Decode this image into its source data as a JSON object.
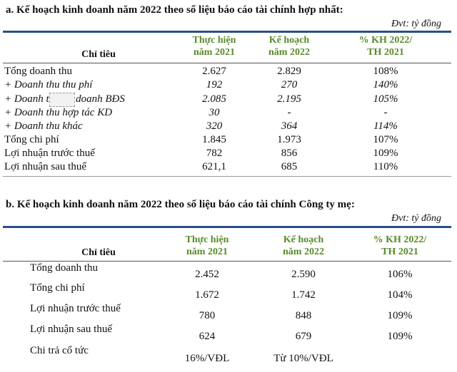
{
  "section_a": {
    "heading": "a.  Kế hoạch kinh doanh năm 2022 theo số liệu báo cáo tài chính hợp nhất:",
    "unit": "Đvt: tỷ đồng",
    "headers": {
      "label": "Chỉ tiêu",
      "c1": [
        "Thực hiện",
        "năm 2021"
      ],
      "c2": [
        "Kế hoạch",
        "năm 2022"
      ],
      "c3": [
        "% KH 2022/",
        "TH 2021"
      ]
    },
    "rows": [
      {
        "label": "Tổng doanh thu",
        "v1": "2.627",
        "v2": "2.829",
        "v3": "108%",
        "italic": false
      },
      {
        "label": "+ Doanh thu thu phí",
        "v1": "192",
        "v2": "270",
        "v3": "140%",
        "italic": true
      },
      {
        "label": "+ Doanh thu   nh doanh BĐS",
        "v1": "2.085",
        "v2": "2.195",
        "v3": "105%",
        "italic": true
      },
      {
        "label": "+ Doanh thu hợp tác KD",
        "v1": "30",
        "v2": "-",
        "v3": "-",
        "italic": true
      },
      {
        "label": "+ Doanh thu khác",
        "v1": "320",
        "v2": "364",
        "v3": "114%",
        "italic": true
      },
      {
        "label": "Tổng chi phí",
        "v1": "1.845",
        "v2": "1.973",
        "v3": "107%",
        "italic": false
      },
      {
        "label": "Lợi nhuận trước thuế",
        "v1": "782",
        "v2": "856",
        "v3": "109%",
        "italic": false
      },
      {
        "label": "Lợi nhuận sau thuế",
        "v1": "621,1",
        "v2": "685",
        "v3": "110%",
        "italic": false
      }
    ]
  },
  "section_b": {
    "heading": "b.  Kế hoạch kinh doanh năm 2022 theo số liệu báo cáo tài chính Công ty mẹ:",
    "unit": "Đvt: tỷ đồng",
    "headers": {
      "label": "Chỉ tiêu",
      "c1": [
        "Thực hiện",
        "năm 2021"
      ],
      "c2": [
        "Kế hoạch",
        "năm 2022"
      ],
      "c3": [
        "% KH 2022/",
        "TH 2021"
      ]
    },
    "rows": [
      {
        "label": "Tổng doanh thu",
        "v1": "2.452",
        "v2": "2.590",
        "v3": "106%"
      },
      {
        "label": "Tổng chi phí",
        "v1": "1.672",
        "v2": "1.742",
        "v3": "104%"
      },
      {
        "label": "Lợi nhuận trước thuế",
        "v1": "780",
        "v2": "848",
        "v3": "109%"
      },
      {
        "label": "Lợi nhuận sau thuế",
        "v1": "624",
        "v2": "679",
        "v3": "109%"
      },
      {
        "label": "Chi trả cổ tức",
        "v1": "16%/VĐL",
        "v2": "Từ 10%/VĐL",
        "v3": ""
      }
    ]
  }
}
